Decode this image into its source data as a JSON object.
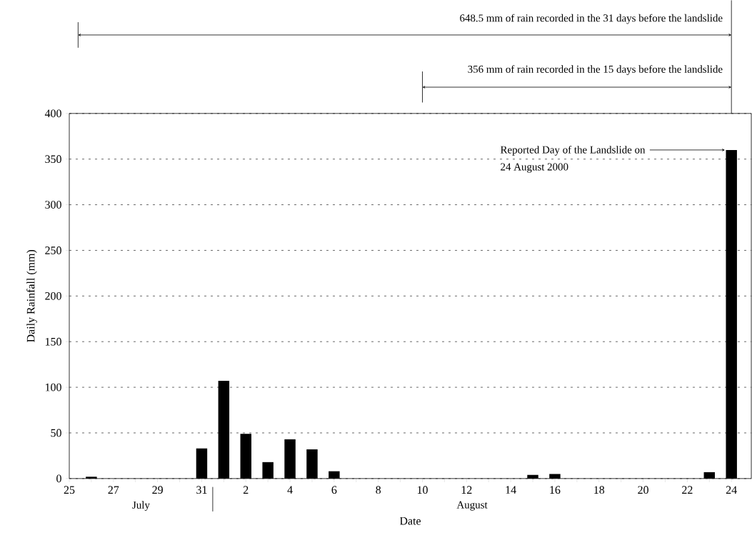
{
  "chart_data": {
    "type": "bar",
    "xlabel": "Date",
    "ylabel": "Daily Rainfall (mm)",
    "categories": [
      "25",
      null,
      "27",
      null,
      "29",
      null,
      "31",
      null,
      "2",
      null,
      "4",
      null,
      "6",
      null,
      "8",
      null,
      "10",
      null,
      "12",
      null,
      "14",
      null,
      "16",
      null,
      "18",
      null,
      "20",
      null,
      "22",
      null,
      "24"
    ],
    "values": [
      0,
      2,
      0,
      0,
      0,
      0,
      33,
      107,
      49,
      18,
      43,
      32,
      8,
      0,
      0,
      0,
      0,
      0,
      0,
      0,
      0,
      4,
      5,
      0,
      0,
      0,
      0,
      0,
      0,
      7,
      360
    ],
    "color": "#000000",
    "ylim": [
      0,
      400
    ],
    "yticks": [
      0,
      50,
      100,
      150,
      200,
      250,
      300,
      350,
      400
    ],
    "grid": "y",
    "annotations": [
      "648.5 mm of rain recorded in the 31 days before the landslide",
      "356 mm of rain recorded in the 15 days before the landslide",
      "Reported Day of the Landslide on\n24 August 2000",
      "July",
      "August"
    ]
  }
}
